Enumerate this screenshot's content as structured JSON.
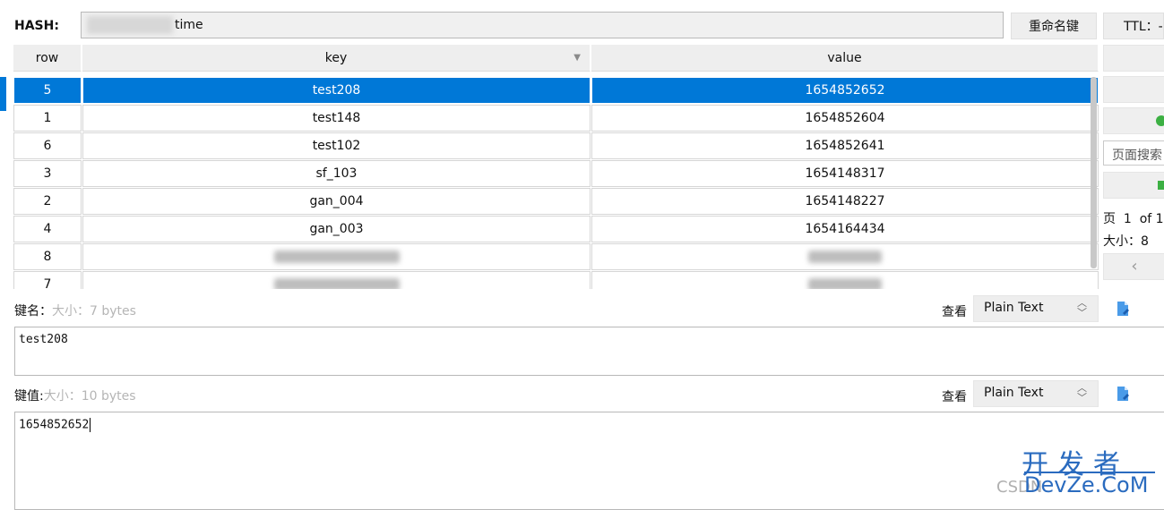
{
  "header": {
    "hash_label": "HASH:",
    "hash_value_suffix": "time",
    "rename_button": "重命名键",
    "ttl_label": "TTL：-"
  },
  "table": {
    "columns": [
      "row",
      "key",
      "value"
    ],
    "sort_indicator": "▼",
    "rows": [
      {
        "row": "5",
        "key": "test208",
        "value": "1654852652",
        "selected": true
      },
      {
        "row": "1",
        "key": "test148",
        "value": "1654852604"
      },
      {
        "row": "6",
        "key": "test102",
        "value": "1654852641"
      },
      {
        "row": "3",
        "key": "sf_103",
        "value": "1654148317"
      },
      {
        "row": "2",
        "key": "gan_004",
        "value": "1654148227"
      },
      {
        "row": "4",
        "key": "gan_003",
        "value": "1654164434"
      },
      {
        "row": "8",
        "key": "",
        "value": ""
      },
      {
        "row": "7",
        "key": "",
        "value": ""
      }
    ]
  },
  "side_panel": {
    "search_placeholder": "页面搜索",
    "page_label": "页",
    "page_number": "1",
    "page_of": "of 1",
    "size_label": "大小：8",
    "prev_icon": "‹"
  },
  "key_editor": {
    "label": "键名：",
    "size_hint": "大小：7 bytes",
    "view_label": "查看",
    "format": "Plain Text",
    "content": "test208"
  },
  "value_editor": {
    "label": "键值:",
    "size_hint": "大小：10 bytes",
    "view_label": "查看",
    "format": "Plain Text",
    "content": "1654852652"
  },
  "watermark": {
    "top": "开发者",
    "bottom": "DevZe.CoM",
    "csdn": "CSDN"
  },
  "colors": {
    "selection": "#0078d7",
    "watermark": "#2a6bbf",
    "icon_green": "#3cb043"
  }
}
